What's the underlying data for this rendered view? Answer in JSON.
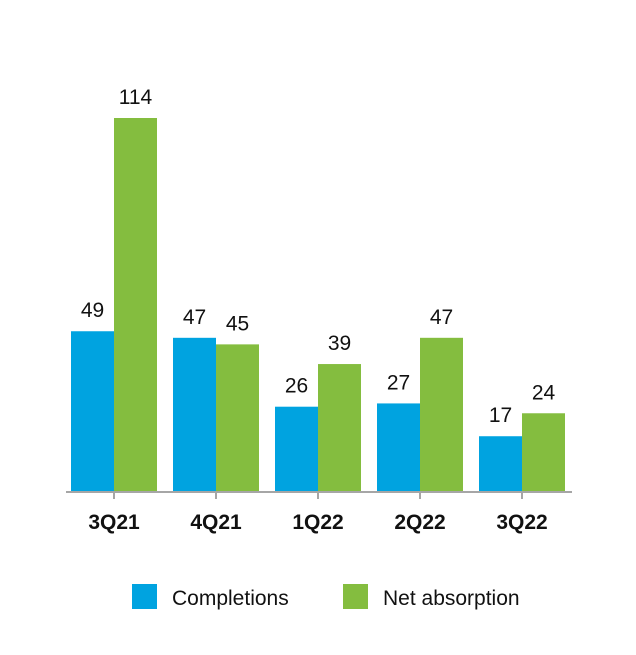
{
  "chart_data": {
    "type": "bar",
    "categories": [
      "3Q21",
      "4Q21",
      "1Q22",
      "2Q22",
      "3Q22"
    ],
    "series": [
      {
        "name": "Completions",
        "values": [
          49,
          47,
          26,
          27,
          17
        ],
        "color": "#00a3e0"
      },
      {
        "name": "Net absorption",
        "values": [
          114,
          45,
          39,
          47,
          24
        ],
        "color": "#84bd3f"
      }
    ],
    "ylim": [
      0,
      114
    ],
    "grid": false,
    "legend_position": "bottom",
    "axis_color": "#a6a6a6"
  }
}
